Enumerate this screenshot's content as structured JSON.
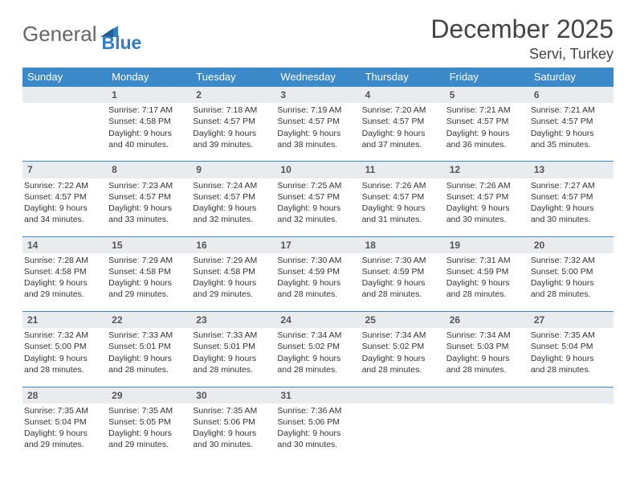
{
  "logo": {
    "text1": "General",
    "text2": "Blue",
    "triangle_color": "#2f7fc2"
  },
  "title": "December 2025",
  "location": "Servi, Turkey",
  "colors": {
    "header_bg": "#3b89c8",
    "header_text": "#ffffff",
    "daynum_bg": "#e9ecef",
    "rule": "#3b89c8"
  },
  "weekdays": [
    "Sunday",
    "Monday",
    "Tuesday",
    "Wednesday",
    "Thursday",
    "Friday",
    "Saturday"
  ],
  "weeks": [
    [
      null,
      {
        "n": "1",
        "sr": "Sunrise: 7:17 AM",
        "ss": "Sunset: 4:58 PM",
        "d1": "Daylight: 9 hours",
        "d2": "and 40 minutes."
      },
      {
        "n": "2",
        "sr": "Sunrise: 7:18 AM",
        "ss": "Sunset: 4:57 PM",
        "d1": "Daylight: 9 hours",
        "d2": "and 39 minutes."
      },
      {
        "n": "3",
        "sr": "Sunrise: 7:19 AM",
        "ss": "Sunset: 4:57 PM",
        "d1": "Daylight: 9 hours",
        "d2": "and 38 minutes."
      },
      {
        "n": "4",
        "sr": "Sunrise: 7:20 AM",
        "ss": "Sunset: 4:57 PM",
        "d1": "Daylight: 9 hours",
        "d2": "and 37 minutes."
      },
      {
        "n": "5",
        "sr": "Sunrise: 7:21 AM",
        "ss": "Sunset: 4:57 PM",
        "d1": "Daylight: 9 hours",
        "d2": "and 36 minutes."
      },
      {
        "n": "6",
        "sr": "Sunrise: 7:21 AM",
        "ss": "Sunset: 4:57 PM",
        "d1": "Daylight: 9 hours",
        "d2": "and 35 minutes."
      }
    ],
    [
      {
        "n": "7",
        "sr": "Sunrise: 7:22 AM",
        "ss": "Sunset: 4:57 PM",
        "d1": "Daylight: 9 hours",
        "d2": "and 34 minutes."
      },
      {
        "n": "8",
        "sr": "Sunrise: 7:23 AM",
        "ss": "Sunset: 4:57 PM",
        "d1": "Daylight: 9 hours",
        "d2": "and 33 minutes."
      },
      {
        "n": "9",
        "sr": "Sunrise: 7:24 AM",
        "ss": "Sunset: 4:57 PM",
        "d1": "Daylight: 9 hours",
        "d2": "and 32 minutes."
      },
      {
        "n": "10",
        "sr": "Sunrise: 7:25 AM",
        "ss": "Sunset: 4:57 PM",
        "d1": "Daylight: 9 hours",
        "d2": "and 32 minutes."
      },
      {
        "n": "11",
        "sr": "Sunrise: 7:26 AM",
        "ss": "Sunset: 4:57 PM",
        "d1": "Daylight: 9 hours",
        "d2": "and 31 minutes."
      },
      {
        "n": "12",
        "sr": "Sunrise: 7:26 AM",
        "ss": "Sunset: 4:57 PM",
        "d1": "Daylight: 9 hours",
        "d2": "and 30 minutes."
      },
      {
        "n": "13",
        "sr": "Sunrise: 7:27 AM",
        "ss": "Sunset: 4:57 PM",
        "d1": "Daylight: 9 hours",
        "d2": "and 30 minutes."
      }
    ],
    [
      {
        "n": "14",
        "sr": "Sunrise: 7:28 AM",
        "ss": "Sunset: 4:58 PM",
        "d1": "Daylight: 9 hours",
        "d2": "and 29 minutes."
      },
      {
        "n": "15",
        "sr": "Sunrise: 7:29 AM",
        "ss": "Sunset: 4:58 PM",
        "d1": "Daylight: 9 hours",
        "d2": "and 29 minutes."
      },
      {
        "n": "16",
        "sr": "Sunrise: 7:29 AM",
        "ss": "Sunset: 4:58 PM",
        "d1": "Daylight: 9 hours",
        "d2": "and 29 minutes."
      },
      {
        "n": "17",
        "sr": "Sunrise: 7:30 AM",
        "ss": "Sunset: 4:59 PM",
        "d1": "Daylight: 9 hours",
        "d2": "and 28 minutes."
      },
      {
        "n": "18",
        "sr": "Sunrise: 7:30 AM",
        "ss": "Sunset: 4:59 PM",
        "d1": "Daylight: 9 hours",
        "d2": "and 28 minutes."
      },
      {
        "n": "19",
        "sr": "Sunrise: 7:31 AM",
        "ss": "Sunset: 4:59 PM",
        "d1": "Daylight: 9 hours",
        "d2": "and 28 minutes."
      },
      {
        "n": "20",
        "sr": "Sunrise: 7:32 AM",
        "ss": "Sunset: 5:00 PM",
        "d1": "Daylight: 9 hours",
        "d2": "and 28 minutes."
      }
    ],
    [
      {
        "n": "21",
        "sr": "Sunrise: 7:32 AM",
        "ss": "Sunset: 5:00 PM",
        "d1": "Daylight: 9 hours",
        "d2": "and 28 minutes."
      },
      {
        "n": "22",
        "sr": "Sunrise: 7:33 AM",
        "ss": "Sunset: 5:01 PM",
        "d1": "Daylight: 9 hours",
        "d2": "and 28 minutes."
      },
      {
        "n": "23",
        "sr": "Sunrise: 7:33 AM",
        "ss": "Sunset: 5:01 PM",
        "d1": "Daylight: 9 hours",
        "d2": "and 28 minutes."
      },
      {
        "n": "24",
        "sr": "Sunrise: 7:34 AM",
        "ss": "Sunset: 5:02 PM",
        "d1": "Daylight: 9 hours",
        "d2": "and 28 minutes."
      },
      {
        "n": "25",
        "sr": "Sunrise: 7:34 AM",
        "ss": "Sunset: 5:02 PM",
        "d1": "Daylight: 9 hours",
        "d2": "and 28 minutes."
      },
      {
        "n": "26",
        "sr": "Sunrise: 7:34 AM",
        "ss": "Sunset: 5:03 PM",
        "d1": "Daylight: 9 hours",
        "d2": "and 28 minutes."
      },
      {
        "n": "27",
        "sr": "Sunrise: 7:35 AM",
        "ss": "Sunset: 5:04 PM",
        "d1": "Daylight: 9 hours",
        "d2": "and 28 minutes."
      }
    ],
    [
      {
        "n": "28",
        "sr": "Sunrise: 7:35 AM",
        "ss": "Sunset: 5:04 PM",
        "d1": "Daylight: 9 hours",
        "d2": "and 29 minutes."
      },
      {
        "n": "29",
        "sr": "Sunrise: 7:35 AM",
        "ss": "Sunset: 5:05 PM",
        "d1": "Daylight: 9 hours",
        "d2": "and 29 minutes."
      },
      {
        "n": "30",
        "sr": "Sunrise: 7:35 AM",
        "ss": "Sunset: 5:06 PM",
        "d1": "Daylight: 9 hours",
        "d2": "and 30 minutes."
      },
      {
        "n": "31",
        "sr": "Sunrise: 7:36 AM",
        "ss": "Sunset: 5:06 PM",
        "d1": "Daylight: 9 hours",
        "d2": "and 30 minutes."
      },
      null,
      null,
      null
    ]
  ]
}
